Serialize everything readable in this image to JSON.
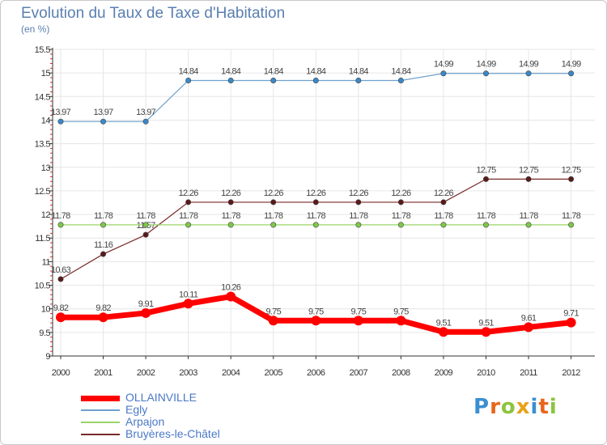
{
  "title": "Evolution du Taux de Taxe d'Habitation",
  "unit_label": "(en %)",
  "logo": {
    "text": "Proxiti",
    "letter_colors": [
      "#3a8fd0",
      "#e8651a",
      "#8cc43c",
      "#e8a21a",
      "#3a8fd0",
      "#e8651a",
      "#8cc43c"
    ]
  },
  "chart_data": {
    "type": "line",
    "x": [
      "2000",
      "2001",
      "2002",
      "2003",
      "2004",
      "2005",
      "2006",
      "2007",
      "2008",
      "2009",
      "2010",
      "2011",
      "2012"
    ],
    "ylim": [
      9,
      15.5
    ],
    "yticks": [
      "9",
      "9.5",
      "10",
      "10.5",
      "11",
      "11.5",
      "12",
      "12.5",
      "13",
      "13.5",
      "14",
      "14.5",
      "15",
      "15.5"
    ],
    "grid": true,
    "legend_position": "bottom-left",
    "series": [
      {
        "name": "Bruyères-le-Châtel",
        "color": "#7a2a2a",
        "marker": "#5a1a1a",
        "width": 1.2,
        "values": [
          10.63,
          11.16,
          11.57,
          12.26,
          12.26,
          12.26,
          12.26,
          12.26,
          12.26,
          12.26,
          12.75,
          12.75,
          12.75
        ],
        "labels": [
          "10.63",
          "11.16",
          "11.57",
          "12.26",
          "12.26",
          "12.26",
          "12.26",
          "12.26",
          "12.26",
          "12.26",
          "12.75",
          "12.75",
          "12.75"
        ]
      },
      {
        "name": "Arpajon",
        "color": "#9ad46a",
        "marker": "#7ec84a",
        "width": 1.2,
        "values": [
          11.78,
          11.78,
          11.78,
          11.78,
          11.78,
          11.78,
          11.78,
          11.78,
          11.78,
          11.78,
          11.78,
          11.78,
          11.78
        ],
        "labels": [
          "11.78",
          "11.78",
          "11.78",
          "11.78",
          "11.78",
          "11.78",
          "11.78",
          "11.78",
          "11.78",
          "11.78",
          "11.78",
          "11.78",
          "11.78"
        ]
      },
      {
        "name": "Egly",
        "color": "#6ea0cc",
        "marker": "#3a88c8",
        "width": 1.2,
        "values": [
          13.97,
          13.97,
          13.97,
          14.84,
          14.84,
          14.84,
          14.84,
          14.84,
          14.84,
          14.99,
          14.99,
          14.99,
          14.99
        ],
        "labels": [
          "13.97",
          "13.97",
          "13.97",
          "14.84",
          "14.84",
          "14.84",
          "14.84",
          "14.84",
          "14.84",
          "14.99",
          "14.99",
          "14.99",
          "14.99"
        ]
      },
      {
        "name": "OLLAINVILLE",
        "color": "#ff0000",
        "marker": "#ff0000",
        "width": 7,
        "values": [
          9.82,
          9.82,
          9.91,
          10.11,
          10.26,
          9.75,
          9.75,
          9.75,
          9.75,
          9.51,
          9.51,
          9.61,
          9.71
        ],
        "labels": [
          "9.82",
          "9.82",
          "9.91",
          "10.11",
          "10.26",
          "9.75",
          "9.75",
          "9.75",
          "9.75",
          "9.51",
          "9.51",
          "9.61",
          "9.71"
        ]
      }
    ],
    "legend_order": [
      "OLLAINVILLE",
      "Egly",
      "Arpajon",
      "Bruyères-le-Châtel"
    ]
  }
}
